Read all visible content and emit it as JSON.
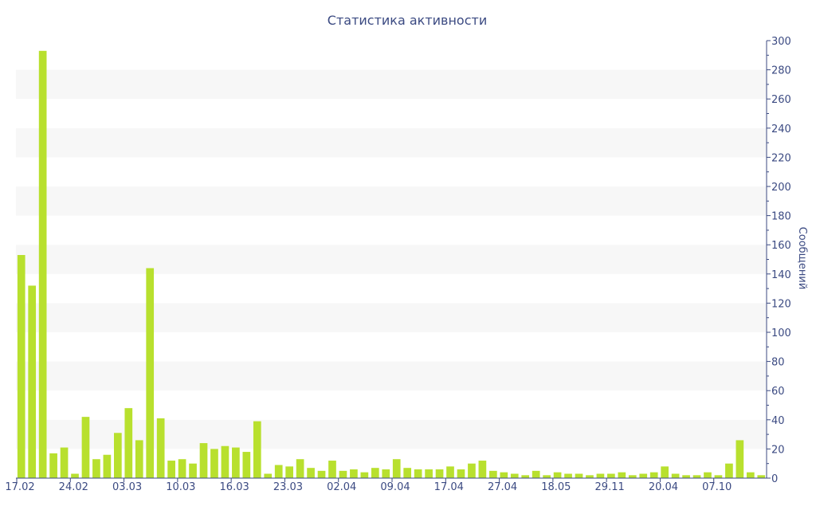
{
  "chart_data": {
    "type": "bar",
    "title": "Статистика активности",
    "xlabel": "",
    "ylabel": "Сообщений",
    "ylim": [
      0,
      300
    ],
    "y_ticks": [
      0,
      20,
      40,
      60,
      80,
      100,
      120,
      140,
      160,
      180,
      200,
      220,
      240,
      260,
      280,
      300
    ],
    "y_axis_position": "right",
    "bar_color": "#b8e02e",
    "band_color": "#f7f7f7",
    "text_color": "#3b4a82",
    "grid": "alternating horizontal bands",
    "x_tick_labels": [
      {
        "index": 0,
        "label": "17.02"
      },
      {
        "index": 5,
        "label": "24.02"
      },
      {
        "index": 10,
        "label": "03.03"
      },
      {
        "index": 15,
        "label": "10.03"
      },
      {
        "index": 20,
        "label": "16.03"
      },
      {
        "index": 25,
        "label": "23.03"
      },
      {
        "index": 30,
        "label": "02.04"
      },
      {
        "index": 35,
        "label": "09.04"
      },
      {
        "index": 40,
        "label": "17.04"
      },
      {
        "index": 45,
        "label": "27.04"
      },
      {
        "index": 50,
        "label": "18.05"
      },
      {
        "index": 55,
        "label": "29.11"
      },
      {
        "index": 60,
        "label": "20.04"
      },
      {
        "index": 65,
        "label": "07.10"
      }
    ],
    "values": [
      153,
      132,
      293,
      17,
      21,
      3,
      42,
      13,
      16,
      31,
      48,
      26,
      144,
      41,
      12,
      13,
      10,
      24,
      20,
      22,
      21,
      18,
      39,
      3,
      9,
      8,
      13,
      7,
      5,
      12,
      5,
      6,
      4,
      7,
      6,
      13,
      7,
      6,
      6,
      6,
      8,
      6,
      10,
      12,
      5,
      4,
      3,
      2,
      5,
      2,
      4,
      3,
      3,
      2,
      3,
      3,
      4,
      2,
      3,
      4,
      8,
      3,
      2,
      2,
      4,
      2,
      10,
      26,
      4,
      2
    ]
  }
}
